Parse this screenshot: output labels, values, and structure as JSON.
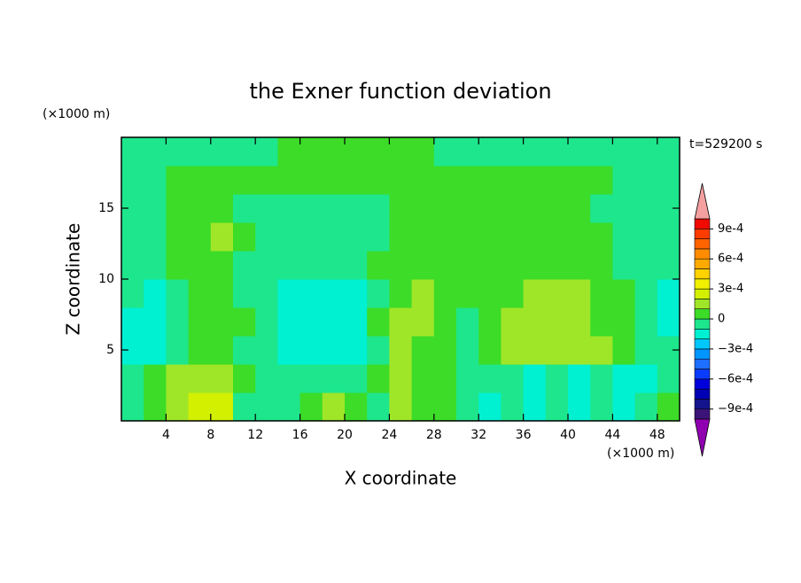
{
  "chart_data": {
    "type": "contour",
    "title": "the Exner function deviation",
    "y_unit": "(×1000 m)",
    "x_unit": "(×1000 m)",
    "time_label": "t=529200 s",
    "xlabel": "X coordinate",
    "ylabel": "Z coordinate",
    "xlim": [
      0,
      50
    ],
    "ylim": [
      0,
      20
    ],
    "xticks": [
      4,
      8,
      12,
      16,
      20,
      24,
      28,
      32,
      36,
      40,
      44,
      48
    ],
    "yticks": [
      5,
      10,
      15
    ],
    "x": [
      1,
      3,
      5,
      7,
      9,
      11,
      13,
      15,
      17,
      19,
      21,
      23,
      25,
      27,
      29,
      31,
      33,
      35,
      37,
      39,
      41,
      43,
      45,
      47,
      49
    ],
    "y": [
      1,
      3,
      5,
      7,
      9,
      11,
      13,
      15,
      17,
      19
    ],
    "z": [
      [
        -5e-05,
        5e-05,
        0.00015,
        0.00025,
        0.00025,
        -5e-05,
        -5e-05,
        -5e-05,
        5e-05,
        0.00015,
        5e-05,
        -5e-05,
        0.00015,
        5e-05,
        5e-05,
        -5e-05,
        -0.00015,
        -5e-05,
        -0.00015,
        -5e-05,
        -0.00015,
        -5e-05,
        -0.00015,
        -5e-05,
        5e-05
      ],
      [
        -5e-05,
        5e-05,
        0.00015,
        0.00015,
        0.00015,
        5e-05,
        -5e-05,
        -5e-05,
        -5e-05,
        -5e-05,
        -5e-05,
        5e-05,
        0.00015,
        5e-05,
        5e-05,
        -5e-05,
        -5e-05,
        -5e-05,
        -0.00015,
        -5e-05,
        -0.00015,
        -5e-05,
        -0.00015,
        -0.00015,
        -5e-05
      ],
      [
        -0.00015,
        -0.00015,
        -5e-05,
        5e-05,
        5e-05,
        -5e-05,
        -5e-05,
        -0.00015,
        -0.00015,
        -0.00015,
        -0.00015,
        -5e-05,
        0.00015,
        5e-05,
        5e-05,
        -5e-05,
        5e-05,
        0.00015,
        0.00015,
        0.00015,
        0.00015,
        0.00015,
        5e-05,
        -5e-05,
        -5e-05
      ],
      [
        -0.00015,
        -0.00015,
        -5e-05,
        5e-05,
        5e-05,
        5e-05,
        -5e-05,
        -0.00015,
        -0.00015,
        -0.00015,
        -0.00015,
        5e-05,
        0.00015,
        0.00015,
        5e-05,
        -5e-05,
        5e-05,
        0.00015,
        0.00015,
        0.00015,
        0.00015,
        5e-05,
        5e-05,
        -5e-05,
        -0.00015
      ],
      [
        -5e-05,
        -0.00015,
        -5e-05,
        5e-05,
        5e-05,
        -5e-05,
        -5e-05,
        -0.00015,
        -0.00015,
        -0.00015,
        -0.00015,
        -5e-05,
        5e-05,
        0.00015,
        5e-05,
        5e-05,
        5e-05,
        5e-05,
        0.00015,
        0.00015,
        0.00015,
        5e-05,
        5e-05,
        -5e-05,
        -0.00015
      ],
      [
        -5e-05,
        -5e-05,
        5e-05,
        5e-05,
        5e-05,
        -5e-05,
        -5e-05,
        -5e-05,
        -5e-05,
        -5e-05,
        -5e-05,
        5e-05,
        5e-05,
        5e-05,
        5e-05,
        5e-05,
        5e-05,
        5e-05,
        5e-05,
        5e-05,
        5e-05,
        5e-05,
        -5e-05,
        -5e-05,
        -5e-05
      ],
      [
        -5e-05,
        -5e-05,
        5e-05,
        5e-05,
        0.00015,
        5e-05,
        -5e-05,
        -5e-05,
        -5e-05,
        -5e-05,
        -5e-05,
        -5e-05,
        5e-05,
        5e-05,
        5e-05,
        5e-05,
        5e-05,
        5e-05,
        5e-05,
        5e-05,
        5e-05,
        5e-05,
        -5e-05,
        -5e-05,
        -5e-05
      ],
      [
        -5e-05,
        -5e-05,
        5e-05,
        5e-05,
        5e-05,
        -5e-05,
        -5e-05,
        -5e-05,
        -5e-05,
        -5e-05,
        -5e-05,
        -5e-05,
        5e-05,
        5e-05,
        5e-05,
        5e-05,
        5e-05,
        5e-05,
        5e-05,
        5e-05,
        5e-05,
        -5e-05,
        -5e-05,
        -5e-05,
        -5e-05
      ],
      [
        -5e-05,
        -5e-05,
        5e-05,
        5e-05,
        5e-05,
        5e-05,
        5e-05,
        5e-05,
        5e-05,
        5e-05,
        5e-05,
        5e-05,
        5e-05,
        5e-05,
        5e-05,
        5e-05,
        5e-05,
        5e-05,
        5e-05,
        5e-05,
        5e-05,
        5e-05,
        -5e-05,
        -5e-05,
        -5e-05
      ],
      [
        -5e-05,
        -5e-05,
        -5e-05,
        -5e-05,
        -5e-05,
        -5e-05,
        -5e-05,
        5e-05,
        5e-05,
        5e-05,
        5e-05,
        5e-05,
        5e-05,
        5e-05,
        -5e-05,
        -5e-05,
        -5e-05,
        -5e-05,
        -5e-05,
        -5e-05,
        -5e-05,
        -5e-05,
        -5e-05,
        -5e-05,
        -5e-05
      ]
    ],
    "colorbar": {
      "lim": [
        -0.001,
        0.001
      ],
      "ticks": [
        {
          "value": 0.0009,
          "label": "9e-4"
        },
        {
          "value": 0.0006,
          "label": "6e-4"
        },
        {
          "value": 0.0003,
          "label": "3e-4"
        },
        0,
        {
          "value": -0.0003,
          "label": "−3e-4"
        },
        {
          "value": -0.0006,
          "label": "−6e-4"
        },
        {
          "value": -0.0009,
          "label": "−9e-4"
        }
      ],
      "colors": [
        "#3c1478",
        "#14148c",
        "#0000b4",
        "#0000dc",
        "#0a3cff",
        "#1e6eff",
        "#0096ff",
        "#00c8ff",
        "#00f0d2",
        "#1ee68c",
        "#3cdc28",
        "#a0e628",
        "#d2f000",
        "#f0f000",
        "#ffd200",
        "#ffaa00",
        "#ff8c00",
        "#ff6400",
        "#ff3c00",
        "#f00a00"
      ],
      "over_color": "#f4a0a0",
      "under_color": "#9000b0"
    }
  }
}
